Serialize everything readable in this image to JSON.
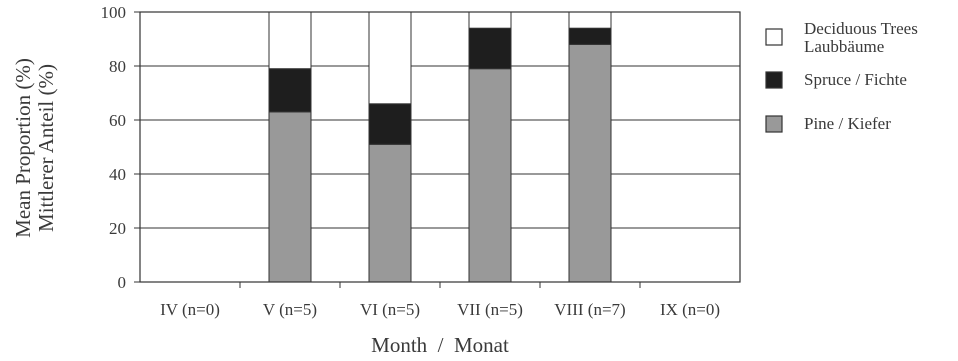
{
  "chart_data": {
    "type": "bar",
    "stacked": true,
    "categories": [
      "IV (n=0)",
      "V (n=5)",
      "VI (n=5)",
      "VII (n=5)",
      "VIII (n=7)",
      "IX (n=0)"
    ],
    "series": [
      {
        "name": "Pine / Kiefer",
        "values": [
          0,
          63,
          51,
          79,
          88,
          0
        ],
        "color": "#999999"
      },
      {
        "name": "Spruce / Fichte",
        "values": [
          0,
          16,
          15,
          15,
          6,
          0
        ],
        "color": "#1e1e1e"
      },
      {
        "name": "Deciduous Trees Laubbäume",
        "values": [
          0,
          21,
          34,
          6,
          6,
          0
        ],
        "color": "#ffffff"
      }
    ],
    "legend": [
      {
        "lines": [
          "Deciduous Trees",
          "Laubbäume"
        ],
        "color": "#ffffff"
      },
      {
        "lines": [
          "Spruce / Fichte"
        ],
        "color": "#1e1e1e"
      },
      {
        "lines": [
          "Pine / Kiefer"
        ],
        "color": "#999999"
      }
    ],
    "legend_position": "right",
    "ylabel_lines": [
      "Mean Proportion (%)",
      "Mittlerer Anteil (%)"
    ],
    "xlabel": "Month  /  Monat",
    "yticks": [
      0,
      20,
      40,
      60,
      80,
      100
    ],
    "ylim": [
      0,
      100
    ],
    "grid": true
  }
}
